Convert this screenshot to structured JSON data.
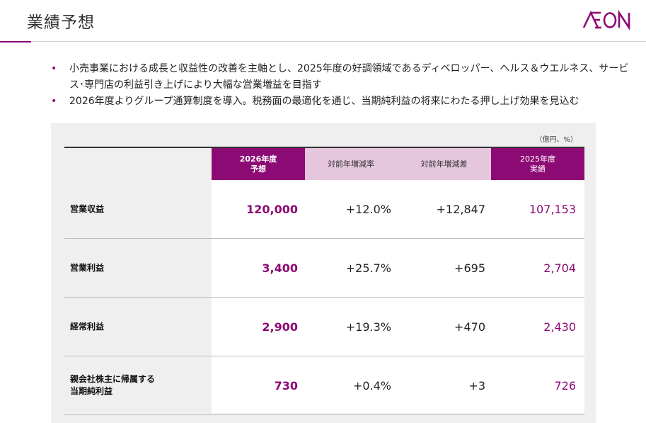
{
  "header": {
    "title": "業績予想",
    "logo_text": "ÆON",
    "accent_color": "#8c0a74"
  },
  "bullets": [
    "小売事業における成長と収益性の改善を主軸とし、2025年度の好調領域であるディベロッパー、ヘルス＆ウエルネス、サービス･専門店の利益引き上げにより大幅な営業増益を目指す",
    "2026年度よりグループ通算制度を導入。税務面の最適化を通じ、当期純利益の将来にわたる押し上げ効果を見込む"
  ],
  "table": {
    "unit": "（億円、%）",
    "headers": [
      "2026年度\n予想",
      "対前年増減率",
      "対前年増減差",
      "2025年度\n実績"
    ],
    "rows": [
      {
        "label": "営業収益",
        "forecast": "120,000",
        "rate": "+12.0%",
        "diff": "+12,847",
        "actual": "107,153"
      },
      {
        "label": "営業利益",
        "forecast": "3,400",
        "rate": "+25.7%",
        "diff": "+695",
        "actual": "2,704"
      },
      {
        "label": "経常利益",
        "forecast": "2,900",
        "rate": "+19.3%",
        "diff": "+470",
        "actual": "2,430"
      },
      {
        "label": "親会社株主に帰属する\n当期純利益",
        "forecast": "730",
        "rate": "+0.4%",
        "diff": "+3",
        "actual": "726"
      }
    ]
  }
}
